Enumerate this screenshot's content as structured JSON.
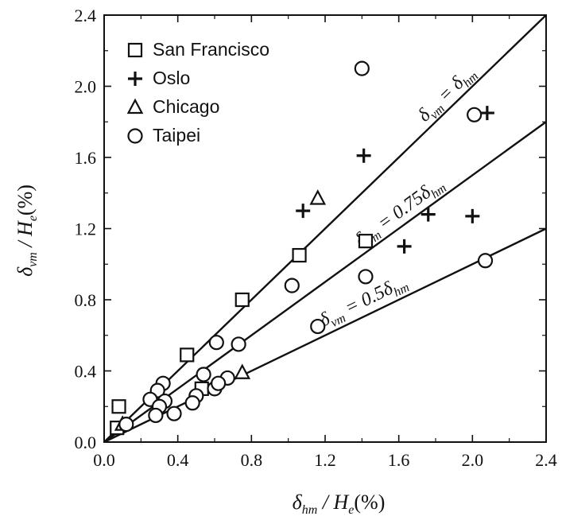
{
  "chart_data": {
    "type": "scatter",
    "xlabel": {
      "base": "δ",
      "sub": "hm",
      "rest": " / H",
      "sub2": "e",
      "tail": "(%)"
    },
    "ylabel": {
      "base": "δ",
      "sub": "vm",
      "rest": " / H",
      "sub2": "e",
      "tail": "(%)"
    },
    "xlim": [
      0,
      2.4
    ],
    "ylim": [
      0,
      2.4
    ],
    "xticks": [
      "0.0",
      "0.4",
      "0.8",
      "1.2",
      "1.6",
      "2.0",
      "2.4"
    ],
    "yticks": [
      "0.0",
      "0.4",
      "0.8",
      "1.2",
      "1.6",
      "2.0",
      "2.4"
    ],
    "grid": false,
    "legend_position": "top-left",
    "series": [
      {
        "name": "San Francisco",
        "marker": "square",
        "points": [
          [
            0.08,
            0.2
          ],
          [
            0.07,
            0.08
          ],
          [
            0.45,
            0.49
          ],
          [
            0.53,
            0.3
          ],
          [
            0.75,
            0.8
          ],
          [
            1.06,
            1.05
          ],
          [
            1.42,
            1.13
          ]
        ]
      },
      {
        "name": "Oslo",
        "marker": "plus",
        "points": [
          [
            1.41,
            1.61
          ],
          [
            1.08,
            1.3
          ],
          [
            1.76,
            1.28
          ],
          [
            2.0,
            1.27
          ],
          [
            1.63,
            1.1
          ],
          [
            2.08,
            1.85
          ]
        ]
      },
      {
        "name": "Chicago",
        "marker": "triangle",
        "points": [
          [
            1.16,
            1.37
          ],
          [
            0.75,
            0.39
          ],
          [
            0.1,
            0.1
          ]
        ]
      },
      {
        "name": "Taipei",
        "marker": "circle",
        "points": [
          [
            1.4,
            2.1
          ],
          [
            2.01,
            1.84
          ],
          [
            1.02,
            0.88
          ],
          [
            1.42,
            0.93
          ],
          [
            1.16,
            0.65
          ],
          [
            2.07,
            1.02
          ],
          [
            0.61,
            0.56
          ],
          [
            0.73,
            0.55
          ],
          [
            0.54,
            0.38
          ],
          [
            0.67,
            0.36
          ],
          [
            0.6,
            0.3
          ],
          [
            0.62,
            0.33
          ],
          [
            0.5,
            0.26
          ],
          [
            0.48,
            0.22
          ],
          [
            0.38,
            0.16
          ],
          [
            0.32,
            0.33
          ],
          [
            0.29,
            0.29
          ],
          [
            0.25,
            0.24
          ],
          [
            0.33,
            0.23
          ],
          [
            0.3,
            0.2
          ],
          [
            0.28,
            0.15
          ],
          [
            0.12,
            0.1
          ]
        ]
      }
    ],
    "reference_lines": [
      {
        "slope": 1.0,
        "label": {
          "pre": "δ",
          "sub": "vm",
          "mid": " = ",
          "coef": "",
          "post": "δ",
          "sub2": "hm"
        }
      },
      {
        "slope": 0.75,
        "label": {
          "pre": "δ",
          "sub": "vm",
          "mid": " = ",
          "coef": "0.75",
          "post": "δ",
          "sub2": "hm"
        }
      },
      {
        "slope": 0.5,
        "label": {
          "pre": "δ",
          "sub": "vm",
          "mid": " = ",
          "coef": "0.5",
          "post": "δ",
          "sub2": "hm"
        }
      }
    ]
  }
}
